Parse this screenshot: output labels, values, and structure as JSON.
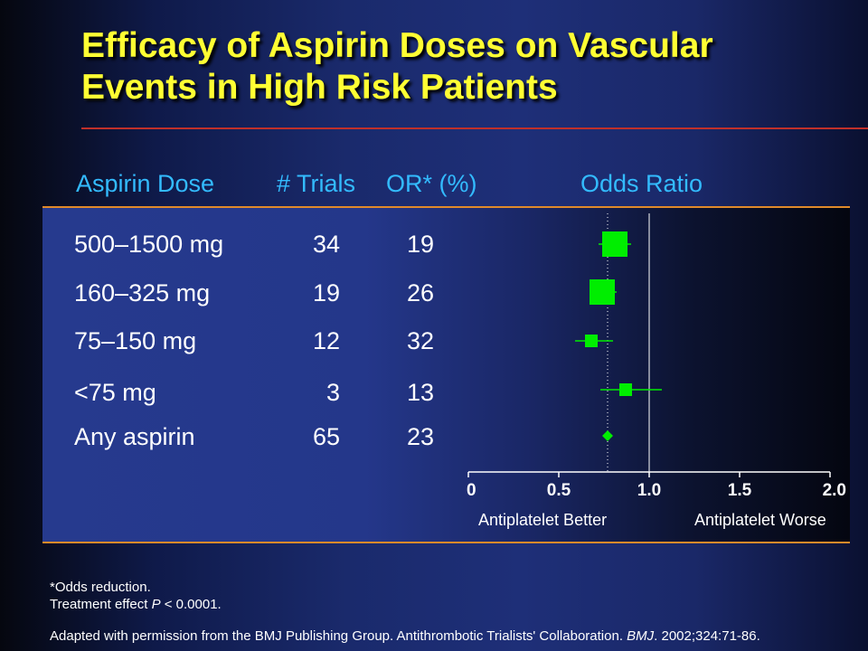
{
  "title": {
    "line1": "Efficacy of Aspirin Doses on Vascular",
    "line2": "Events in High Risk Patients"
  },
  "headers": {
    "dose": "Aspirin Dose",
    "trials": "# Trials",
    "or": "OR* (%)",
    "odds_ratio": "Odds Ratio"
  },
  "rows": [
    {
      "dose": "500–1500 mg",
      "trials": "34",
      "or": "19"
    },
    {
      "dose": "160–325 mg",
      "trials": "19",
      "or": "26"
    },
    {
      "dose": "75–150 mg",
      "trials": "12",
      "or": "32"
    },
    {
      "dose": "<75 mg",
      "trials": "3",
      "or": "13"
    },
    {
      "dose": "Any aspirin",
      "trials": "65",
      "or": "23"
    }
  ],
  "axis": {
    "better": "Antiplatelet Better",
    "worse": "Antiplatelet Worse"
  },
  "footnotes": {
    "line1": "*Odds reduction.",
    "line2_pre": "Treatment effect ",
    "line2_p": "P",
    "line2_post": " < 0.0001.",
    "line3_pre": "Adapted with permission from the BMJ Publishing Group. Antithrombotic Trialists' Collaboration. ",
    "line3_journal": "BMJ",
    "line3_post": ". 2002;324:71-86."
  },
  "chart_data": {
    "type": "forest",
    "categories": [
      "500–1500 mg",
      "160–325 mg",
      "75–150 mg",
      "<75 mg",
      "Any aspirin"
    ],
    "values": [
      0.81,
      0.74,
      0.68,
      0.87,
      0.77
    ],
    "ci_low": [
      0.72,
      0.67,
      0.59,
      0.73,
      0.77
    ],
    "ci_high": [
      0.9,
      0.82,
      0.8,
      1.07,
      0.77
    ],
    "marker_size": [
      "large",
      "large",
      "small",
      "small",
      "diamond"
    ],
    "xlim": [
      0,
      2.0
    ],
    "xticks": [
      "0",
      "0.5",
      "1.0",
      "1.5",
      "2.0"
    ],
    "reference_line": 1.0,
    "pooled_dotted_line": 0.77,
    "marker_color": "#00ee00",
    "title": "Odds Ratio"
  }
}
